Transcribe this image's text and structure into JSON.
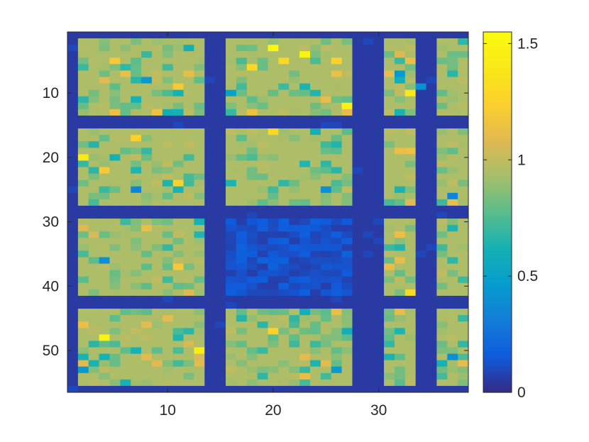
{
  "chart_data": {
    "type": "heatmap",
    "title": "",
    "xlabel": "",
    "ylabel": "",
    "colormap": "parula",
    "background_value": 0.05,
    "xlim": [
      0.5,
      38.5
    ],
    "ylim": [
      0.5,
      56.5
    ],
    "x_ticks": [
      10,
      20,
      30
    ],
    "y_ticks": [
      10,
      20,
      30,
      40,
      50
    ],
    "x_tick_labels": [
      "10",
      "20",
      "30"
    ],
    "y_tick_labels": [
      "10",
      "20",
      "30",
      "40",
      "50"
    ],
    "colorbar": {
      "range": [
        0,
        1.55
      ],
      "ticks": [
        0,
        0.5,
        1,
        1.5
      ],
      "tick_labels": [
        "0",
        "0.5",
        "1",
        "1.5"
      ],
      "placement": "right"
    },
    "column_groups": [
      {
        "from": 2,
        "to": 13
      },
      {
        "from": 16,
        "to": 27
      },
      {
        "from": 31,
        "to": 33
      },
      {
        "from": 36,
        "to": 38
      }
    ],
    "row_groups": [
      {
        "from": 2,
        "to": 13
      },
      {
        "from": 16,
        "to": 27
      },
      {
        "from": 30,
        "to": 41
      },
      {
        "from": 44,
        "to": 55
      }
    ],
    "typical_block_value": 0.95,
    "low_block": {
      "columns": [
        16,
        27
      ],
      "rows": [
        30,
        41
      ],
      "typical_value": 0.12
    },
    "notable_cells": [
      {
        "x": 20,
        "y": 3,
        "value": 1.52
      },
      {
        "x": 23,
        "y": 4,
        "value": 1.5
      },
      {
        "x": 27,
        "y": 12,
        "value": 1.48
      },
      {
        "x": 4,
        "y": 48,
        "value": 1.5
      },
      {
        "x": 13,
        "y": 50,
        "value": 1.45
      },
      {
        "x": 2,
        "y": 20,
        "value": 1.4
      },
      {
        "x": 33,
        "y": 10,
        "value": 1.4
      },
      {
        "x": 18,
        "y": 6,
        "value": 1.3
      },
      {
        "x": 21,
        "y": 5,
        "value": 1.3
      },
      {
        "x": 26,
        "y": 5,
        "value": 1.25
      },
      {
        "x": 20,
        "y": 16,
        "value": 1.3
      },
      {
        "x": 7,
        "y": 17,
        "value": 1.25
      },
      {
        "x": 11,
        "y": 24,
        "value": 1.25
      },
      {
        "x": 4,
        "y": 22,
        "value": 1.2
      },
      {
        "x": 20,
        "y": 47,
        "value": 1.25
      },
      {
        "x": 33,
        "y": 41,
        "value": 1.3
      },
      {
        "x": 11,
        "y": 9,
        "value": 1.2
      },
      {
        "x": 11,
        "y": 37,
        "value": 1.2
      },
      {
        "x": 18,
        "y": 13,
        "value": 1.15
      },
      {
        "x": 5,
        "y": 5,
        "value": 1.2
      },
      {
        "x": 32,
        "y": 7,
        "value": 0.45
      },
      {
        "x": 37,
        "y": 26,
        "value": 0.35
      },
      {
        "x": 37,
        "y": 51,
        "value": 0.4
      },
      {
        "x": 7,
        "y": 25,
        "value": 0.35
      },
      {
        "x": 4,
        "y": 36,
        "value": 0.4
      },
      {
        "x": 8,
        "y": 8,
        "value": 0.45
      },
      {
        "x": 16,
        "y": 10,
        "value": 0.5
      },
      {
        "x": 25,
        "y": 25,
        "value": 0.4
      },
      {
        "x": 2,
        "y": 53,
        "value": 0.45
      },
      {
        "x": 34,
        "y": 9,
        "value": 0.4
      },
      {
        "x": 26,
        "y": 53,
        "value": 0.45
      }
    ]
  }
}
